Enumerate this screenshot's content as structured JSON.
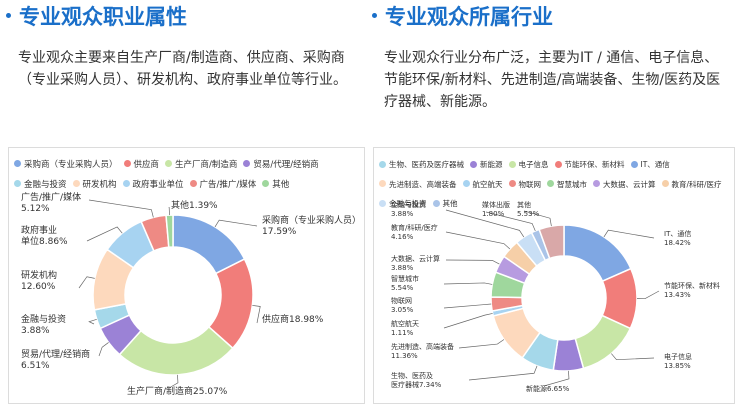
{
  "left": {
    "heading": "专业观众职业属性",
    "paragraph": "专业观众主要来自生产厂商/制造商、供应商、采购商（专业采购人员）、研发机构、政府事业单位等行业。"
  },
  "right": {
    "heading": "专业观众所属行业",
    "paragraph": "专业观众行业分布广泛，主要为IT / 通信、电子信息、节能环保/新材料、先进制造/高端装备、生物/医药及医疗器械、新能源。"
  },
  "chart_data": [
    {
      "type": "pie",
      "donut": true,
      "legend_position": "top",
      "categories": [
        "采购商（专业采购人员）",
        "供应商",
        "生产厂商/制造商",
        "贸易/代理/经销商",
        "金融与投资",
        "研发机构",
        "政府事业单位",
        "广告/推广/媒体",
        "其他"
      ],
      "values": [
        17.59,
        18.98,
        25.07,
        6.51,
        3.88,
        12.6,
        8.86,
        5.12,
        1.39
      ],
      "colors": [
        "#7fa7e3",
        "#f17d7a",
        "#c8e6a6",
        "#9b82d6",
        "#a5d8ea",
        "#fdd9bd",
        "#a7d3f1",
        "#ee8a84",
        "#9fd79d"
      ],
      "labels": [
        {
          "lines": [
            "采购商（专业采购人员）",
            "17.59%"
          ]
        },
        {
          "lines": [
            "供应商18.98%"
          ]
        },
        {
          "lines": [
            "生产厂商/制造商25.07%"
          ]
        },
        {
          "lines": [
            "贸易/代理/经销商",
            "6.51%"
          ]
        },
        {
          "lines": [
            "金融与投资",
            "3.88%"
          ]
        },
        {
          "lines": [
            "研发机构",
            "12.60%"
          ]
        },
        {
          "lines": [
            "政府事业",
            "单位8.86%"
          ]
        },
        {
          "lines": [
            "广告/推广/媒体",
            "5.12%"
          ]
        },
        {
          "lines": [
            "其他1.39%"
          ]
        }
      ]
    },
    {
      "type": "pie",
      "donut": true,
      "legend_position": "top",
      "categories": [
        "生物、医药及医疗器械",
        "新能源",
        "电子信息",
        "节能环保、新材料",
        "IT、通信",
        "先进制造、高端装备",
        "航空航天",
        "物联网",
        "智慧城市",
        "大数据、云计算",
        "教育/科研/医疗",
        "金融与投资",
        "其他"
      ],
      "legend_categories": [
        "生物、医药及医疗器械",
        "新能源",
        "电子信息",
        "节能环保、新材料",
        "IT、通信",
        "先进制造、高端装备",
        "航空航天",
        "物联网",
        "智慧城市",
        "大数据、云计算",
        "教育/科研/医疗",
        "金融与投资",
        "其他"
      ],
      "pie_order": [
        "IT、通信",
        "节能环保、新材料",
        "电子信息",
        "新能源",
        "生物、医药及医疗器械",
        "先进制造、高端装备",
        "航空航天",
        "物联网",
        "智慧城市",
        "大数据、云计算",
        "教育/科研/医疗",
        "金融与投资",
        "媒体出版",
        "其他"
      ],
      "pie_values": [
        18.42,
        13.43,
        13.85,
        6.65,
        7.34,
        11.36,
        1.11,
        3.05,
        5.54,
        3.88,
        4.16,
        3.88,
        1.8,
        5.53
      ],
      "pie_colors": [
        "#7fa7e3",
        "#f17d7a",
        "#c8e6a6",
        "#9b82d6",
        "#a5d8ea",
        "#fdd9bd",
        "#a7d3f1",
        "#ee8a84",
        "#9fd79d",
        "#b79be0",
        "#f6cfa8",
        "#c9dff5",
        "#aac4e8",
        "#d9a8a8"
      ],
      "legend_colors": [
        "#a5d8ea",
        "#9b82d6",
        "#c8e6a6",
        "#f17d7a",
        "#7fa7e3",
        "#fdd9bd",
        "#a7d3f1",
        "#ee8a84",
        "#9fd79d",
        "#b79be0",
        "#f6cfa8",
        "#c9dff5",
        "#aac4e8"
      ],
      "labels": [
        {
          "lines": [
            "IT、通信",
            "18.42%"
          ]
        },
        {
          "lines": [
            "节能环保、新材料",
            "13.43%"
          ]
        },
        {
          "lines": [
            "电子信息",
            "13.85%"
          ]
        },
        {
          "lines": [
            "新能源6.65%"
          ]
        },
        {
          "lines": [
            "生物、医药及",
            "医疗器械7.34%"
          ]
        },
        {
          "lines": [
            "先进制造、高端装备",
            "11.36%"
          ]
        },
        {
          "lines": [
            "航空航天",
            "1.11%"
          ]
        },
        {
          "lines": [
            "物联网",
            "3.05%"
          ]
        },
        {
          "lines": [
            "智慧城市",
            "5.54%"
          ]
        },
        {
          "lines": [
            "大数据、云计算",
            "3.88%"
          ]
        },
        {
          "lines": [
            "教育/科研/医疗",
            "4.16%"
          ]
        },
        {
          "lines": [
            "金融与投资",
            "3.88%"
          ]
        },
        {
          "lines": [
            "媒体出版",
            "1.80%"
          ]
        },
        {
          "lines": [
            "其他",
            "5.53%"
          ]
        }
      ]
    }
  ]
}
